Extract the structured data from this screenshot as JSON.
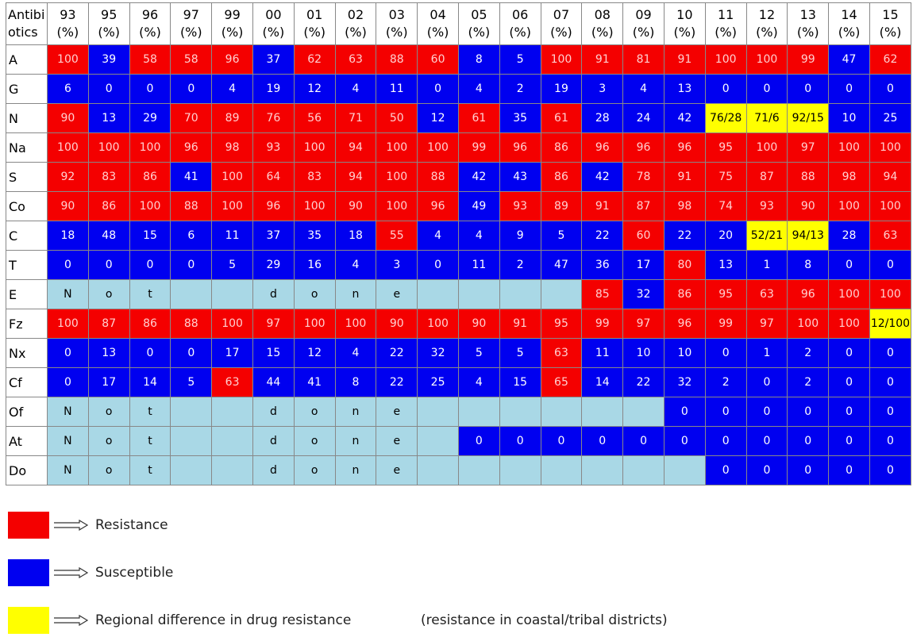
{
  "table": {
    "corner": [
      "Antibi",
      "otics"
    ],
    "unit": "(%)",
    "years": [
      "93",
      "95",
      "96",
      "97",
      "99",
      "00",
      "01",
      "02",
      "03",
      "04",
      "05",
      "06",
      "07",
      "08",
      "09",
      "10",
      "11",
      "12",
      "13",
      "14",
      "15"
    ],
    "rows": [
      {
        "label": "A",
        "cells": [
          100,
          39,
          58,
          58,
          96,
          37,
          62,
          63,
          88,
          60,
          8,
          5,
          100,
          91,
          81,
          91,
          100,
          100,
          99,
          47,
          62
        ],
        "fills": "rbrrrbrrrrbbrrrrrrrbr"
      },
      {
        "label": "G",
        "cells": [
          6,
          0,
          0,
          0,
          4,
          19,
          12,
          4,
          11,
          0,
          4,
          2,
          19,
          3,
          4,
          13,
          0,
          0,
          0,
          0,
          0
        ],
        "fills": "bbbbbbbbbbbbbbbbbbbbb"
      },
      {
        "label": "N",
        "cells": [
          90,
          13,
          29,
          70,
          89,
          76,
          56,
          71,
          50,
          12,
          61,
          35,
          61,
          28,
          24,
          42,
          "76/28",
          "71/6",
          "92/15",
          10,
          25
        ],
        "fills": "rbbrrrrrrbrbrbbbyyybb"
      },
      {
        "label": "Na",
        "cells": [
          100,
          100,
          100,
          96,
          98,
          93,
          100,
          94,
          100,
          100,
          99,
          96,
          86,
          96,
          96,
          96,
          95,
          100,
          97,
          100,
          100
        ],
        "fills": "rrrrrrrrrrrrrrrrrrrrr"
      },
      {
        "label": "S",
        "cells": [
          92,
          83,
          86,
          41,
          100,
          64,
          83,
          94,
          100,
          88,
          42,
          43,
          86,
          42,
          78,
          91,
          75,
          87,
          88,
          98,
          94
        ],
        "fills": "rrrbrrrrrrbbrbrrrrrrr"
      },
      {
        "label": "Co",
        "cells": [
          90,
          86,
          100,
          88,
          100,
          96,
          100,
          90,
          100,
          96,
          49,
          93,
          89,
          91,
          87,
          98,
          74,
          93,
          90,
          100,
          100
        ],
        "fills": "rrrrrrrrrrbrrrrrrrrrr"
      },
      {
        "label": "C",
        "cells": [
          18,
          48,
          15,
          6,
          11,
          37,
          35,
          18,
          55,
          4,
          4,
          9,
          5,
          22,
          60,
          22,
          20,
          "52/21",
          "94/13",
          28,
          63
        ],
        "fills": "bbbbbbbbrbbbbbrbbyybr"
      },
      {
        "label": "T",
        "cells": [
          0,
          0,
          0,
          0,
          5,
          29,
          16,
          4,
          3,
          0,
          11,
          2,
          47,
          36,
          17,
          80,
          13,
          1,
          8,
          0,
          0
        ],
        "fills": "bbbbbbbbbbbbbbbrbbbbb"
      },
      {
        "label": "E",
        "cells": [
          "N",
          "o",
          "t",
          null,
          null,
          "d",
          "o",
          "n",
          "e",
          null,
          null,
          null,
          null,
          85,
          32,
          86,
          95,
          63,
          96,
          100,
          100
        ],
        "fills": "lllllllllllllrbrrrrrr"
      },
      {
        "label": "Fz",
        "cells": [
          100,
          87,
          86,
          88,
          100,
          97,
          100,
          100,
          90,
          100,
          90,
          91,
          95,
          99,
          97,
          96,
          99,
          97,
          100,
          100,
          "12/100"
        ],
        "fills": "rrrrrrrrrrrrrrrrrrrry"
      },
      {
        "label": "Nx",
        "cells": [
          0,
          13,
          0,
          0,
          17,
          15,
          12,
          4,
          22,
          32,
          5,
          5,
          63,
          11,
          10,
          10,
          0,
          1,
          2,
          0,
          0
        ],
        "fills": "bbbbbbbbbbbbrbbbbbbbb"
      },
      {
        "label": "Cf",
        "cells": [
          0,
          17,
          14,
          5,
          63,
          44,
          41,
          8,
          22,
          25,
          4,
          15,
          65,
          14,
          22,
          32,
          2,
          0,
          2,
          0,
          0
        ],
        "fills": "bbbbrbbbbbbbrbbbbbbbb"
      },
      {
        "label": "Of",
        "cells": [
          "N",
          "o",
          "t",
          null,
          null,
          "d",
          "o",
          "n",
          "e",
          null,
          null,
          null,
          null,
          null,
          null,
          0,
          0,
          0,
          0,
          0,
          0
        ],
        "fills": "lllllllllllllllbbbbbb"
      },
      {
        "label": "At",
        "cells": [
          "N",
          "o",
          "t",
          null,
          null,
          "d",
          "o",
          "n",
          "e",
          null,
          0,
          0,
          0,
          0,
          0,
          0,
          0,
          0,
          0,
          0,
          0
        ],
        "fills": "llllllllllbbbbbbbbbbb"
      },
      {
        "label": "Do",
        "cells": [
          "N",
          "o",
          "t",
          null,
          null,
          "d",
          "o",
          "n",
          "e",
          null,
          null,
          null,
          null,
          null,
          null,
          null,
          0,
          0,
          0,
          0,
          0
        ],
        "fills": "llllllllllllllllbbbbb"
      }
    ]
  },
  "legend": [
    {
      "fill": "r",
      "label": "Resistance"
    },
    {
      "fill": "b",
      "label": "Susceptible"
    },
    {
      "fill": "y",
      "label": "Regional difference in drug resistance",
      "note": "(resistance in coastal/tribal districts)"
    }
  ]
}
